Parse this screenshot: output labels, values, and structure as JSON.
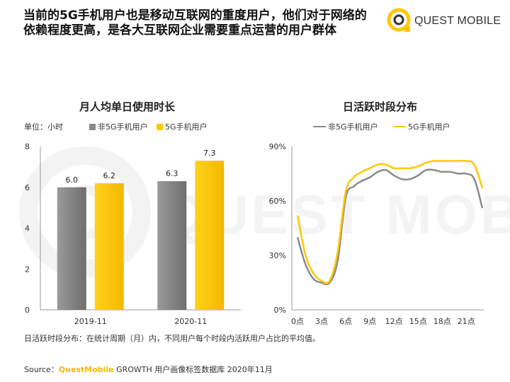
{
  "headline": {
    "line1": "当前的5G手机用户也是移动互联网的重度用户，他们对于网络的",
    "line2": "依赖程度更高，是各大互联网企业需要重点运营的用户群体"
  },
  "logo": {
    "text": "QUEST MOBILE"
  },
  "bar_panel": {
    "title": "月人均单日使用时长",
    "unit": "单位：小时",
    "legend": [
      "非5G手机用户",
      "5G手机用户"
    ]
  },
  "line_panel": {
    "title": "日活跃时段分布",
    "legend": [
      "非5G手机用户",
      "5G手机用户"
    ]
  },
  "footnote": "日活跃时段分布：在统计周期（月）内，不同用户每个时段内活跃用户占比的平均值。",
  "source": {
    "prefix": "Source：",
    "brand": "QuestMobile",
    "suffix": " GROWTH 用户画像标签数据库 2020年11月"
  },
  "colors": {
    "grey": "#8a8a8a",
    "yellow": "#ffc800",
    "grid": "#e6e6e6"
  },
  "chart_data": [
    {
      "type": "bar",
      "title": "月人均单日使用时长",
      "ylabel": "单位：小时",
      "categories": [
        "2019-11",
        "2020-11"
      ],
      "series": [
        {
          "name": "非5G手机用户",
          "values": [
            6.0,
            6.3
          ]
        },
        {
          "name": "5G手机用户",
          "values": [
            6.2,
            7.3
          ]
        }
      ],
      "ylim": [
        0,
        8
      ],
      "yticks": [
        0,
        2,
        4,
        6,
        8
      ],
      "legend": "top"
    },
    {
      "type": "line",
      "title": "日活跃时段分布",
      "x": [
        0,
        1,
        2,
        3,
        4,
        5,
        6,
        7,
        8,
        9,
        10,
        11,
        12,
        13,
        14,
        15,
        16,
        17,
        18,
        19,
        20,
        21,
        22,
        23
      ],
      "xticks": [
        "0点",
        "3点",
        "6点",
        "9点",
        "12点",
        "15点",
        "18点",
        "21点"
      ],
      "series": [
        {
          "name": "非5G手机用户",
          "values": [
            40,
            25,
            17,
            15,
            15,
            27,
            62,
            68,
            71,
            73,
            76,
            77,
            74,
            72,
            72,
            74,
            77,
            77,
            76,
            76,
            75,
            75,
            72,
            56
          ]
        },
        {
          "name": "5G手机用户",
          "values": [
            52,
            30,
            20,
            16,
            16,
            32,
            65,
            73,
            76,
            78,
            80,
            80,
            78,
            78,
            78,
            79,
            81,
            82,
            82,
            82,
            82,
            82,
            80,
            67
          ]
        }
      ],
      "ylim": [
        0,
        90
      ],
      "yticks": [
        "0%",
        "30%",
        "60%",
        "90%"
      ],
      "legend": "top"
    }
  ]
}
